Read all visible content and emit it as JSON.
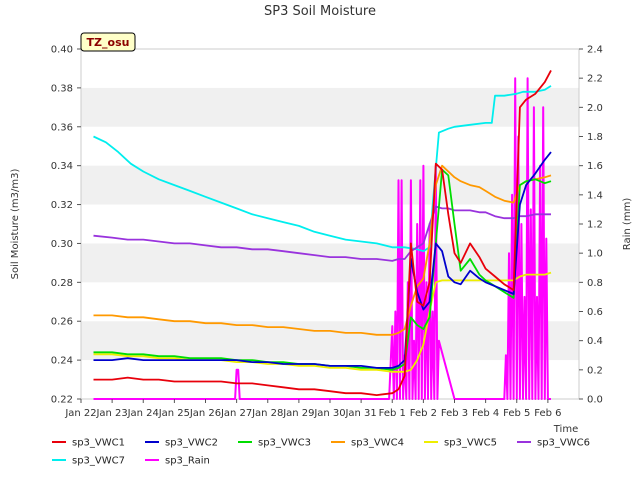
{
  "chart_data": {
    "type": "line",
    "title": "SP3 Soil Moisture",
    "xlabel": "Time",
    "ylabel": "Soil Moisture (m3/m3)",
    "y2label": "Rain (mm)",
    "badge": "TZ_osu",
    "x_ticks": [
      "Jan 22",
      "Jan 23",
      "Jan 24",
      "Jan 25",
      "Jan 26",
      "Jan 27",
      "Jan 28",
      "Jan 29",
      "Jan 30",
      "Jan 31",
      "Feb 1",
      "Feb 2",
      "Feb 3",
      "Feb 4",
      "Feb 5",
      "Feb 6"
    ],
    "xlim": [
      0,
      16
    ],
    "ylim": [
      0.22,
      0.4
    ],
    "y_ticks": [
      "0.22",
      "0.24",
      "0.26",
      "0.28",
      "0.30",
      "0.32",
      "0.34",
      "0.36",
      "0.38",
      "0.40"
    ],
    "y2lim": [
      0,
      2.4
    ],
    "y2_ticks": [
      "0.0",
      "0.2",
      "0.4",
      "0.6",
      "0.8",
      "1.0",
      "1.2",
      "1.4",
      "1.6",
      "1.8",
      "2.0",
      "2.2",
      "2.4"
    ],
    "grid": "horizontal bands",
    "legend": "bottom",
    "series": [
      {
        "name": "sp3_VWC1",
        "color": "#e8000b",
        "axis": "left",
        "x": [
          0.4,
          1,
          1.5,
          2,
          2.5,
          3,
          3.5,
          4,
          4.5,
          5,
          5.5,
          6,
          6.5,
          7,
          7.5,
          8,
          8.5,
          9,
          9.5,
          10,
          10.2,
          10.4,
          10.6,
          10.8,
          11,
          11.2,
          11.4,
          11.6,
          11.8,
          12,
          12.2,
          12.5,
          12.8,
          13,
          13.3,
          13.6,
          13.9,
          14.1,
          14.3,
          14.6,
          14.9,
          15.1
        ],
        "y": [
          0.23,
          0.23,
          0.231,
          0.23,
          0.23,
          0.229,
          0.229,
          0.229,
          0.229,
          0.228,
          0.228,
          0.227,
          0.226,
          0.225,
          0.225,
          0.224,
          0.223,
          0.223,
          0.222,
          0.223,
          0.225,
          0.232,
          0.3,
          0.27,
          0.268,
          0.28,
          0.341,
          0.338,
          0.315,
          0.295,
          0.29,
          0.3,
          0.293,
          0.287,
          0.283,
          0.279,
          0.276,
          0.37,
          0.374,
          0.377,
          0.383,
          0.389
        ]
      },
      {
        "name": "sp3_VWC2",
        "color": "#0000cc",
        "axis": "left",
        "x": [
          0.4,
          1,
          1.5,
          2,
          2.5,
          3,
          3.5,
          4,
          4.5,
          5,
          5.5,
          6,
          6.5,
          7,
          7.5,
          8,
          8.5,
          9,
          9.5,
          10,
          10.2,
          10.4,
          10.6,
          10.8,
          11,
          11.2,
          11.4,
          11.6,
          11.8,
          12,
          12.2,
          12.5,
          12.8,
          13,
          13.3,
          13.6,
          13.9,
          14.1,
          14.3,
          14.6,
          14.9,
          15.1
        ],
        "y": [
          0.24,
          0.24,
          0.241,
          0.24,
          0.24,
          0.24,
          0.24,
          0.24,
          0.24,
          0.24,
          0.239,
          0.239,
          0.238,
          0.238,
          0.238,
          0.237,
          0.237,
          0.237,
          0.236,
          0.236,
          0.237,
          0.24,
          0.292,
          0.275,
          0.266,
          0.27,
          0.3,
          0.296,
          0.283,
          0.28,
          0.279,
          0.286,
          0.282,
          0.28,
          0.278,
          0.276,
          0.274,
          0.32,
          0.33,
          0.336,
          0.343,
          0.347
        ]
      },
      {
        "name": "sp3_VWC3",
        "color": "#00dd00",
        "axis": "left",
        "x": [
          0.4,
          1,
          1.5,
          2,
          2.5,
          3,
          3.5,
          4,
          4.5,
          5,
          5.5,
          6,
          6.5,
          7,
          7.5,
          8,
          8.5,
          9,
          9.5,
          10,
          10.2,
          10.4,
          10.6,
          10.8,
          11,
          11.2,
          11.4,
          11.6,
          11.8,
          12,
          12.2,
          12.5,
          12.8,
          13,
          13.3,
          13.6,
          13.9,
          14.1,
          14.3,
          14.6,
          14.9,
          15.1
        ],
        "y": [
          0.244,
          0.244,
          0.243,
          0.243,
          0.242,
          0.242,
          0.241,
          0.241,
          0.241,
          0.24,
          0.24,
          0.239,
          0.239,
          0.238,
          0.238,
          0.237,
          0.237,
          0.236,
          0.236,
          0.235,
          0.236,
          0.238,
          0.262,
          0.258,
          0.256,
          0.262,
          0.3,
          0.338,
          0.335,
          0.31,
          0.286,
          0.292,
          0.284,
          0.281,
          0.278,
          0.275,
          0.272,
          0.33,
          0.332,
          0.333,
          0.331,
          0.332
        ]
      },
      {
        "name": "sp3_VWC4",
        "color": "#ff9900",
        "axis": "left",
        "x": [
          0.4,
          1,
          1.5,
          2,
          2.5,
          3,
          3.5,
          4,
          4.5,
          5,
          5.5,
          6,
          6.5,
          7,
          7.5,
          8,
          8.5,
          9,
          9.5,
          10,
          10.2,
          10.4,
          10.6,
          10.8,
          11,
          11.2,
          11.4,
          11.6,
          11.8,
          12,
          12.2,
          12.5,
          12.8,
          13,
          13.3,
          13.6,
          13.9,
          14.1,
          14.3,
          14.6,
          14.9,
          15.1
        ],
        "y": [
          0.263,
          0.263,
          0.262,
          0.262,
          0.261,
          0.26,
          0.26,
          0.259,
          0.259,
          0.258,
          0.258,
          0.257,
          0.257,
          0.256,
          0.255,
          0.255,
          0.254,
          0.254,
          0.253,
          0.253,
          0.254,
          0.256,
          0.268,
          0.278,
          0.282,
          0.3,
          0.33,
          0.34,
          0.337,
          0.334,
          0.332,
          0.33,
          0.329,
          0.327,
          0.324,
          0.322,
          0.321,
          0.33,
          0.332,
          0.333,
          0.334,
          0.335
        ]
      },
      {
        "name": "sp3_VWC5",
        "color": "#eeee00",
        "axis": "left",
        "x": [
          0.4,
          1,
          1.5,
          2,
          2.5,
          3,
          3.5,
          4,
          4.5,
          5,
          5.5,
          6,
          6.5,
          7,
          7.5,
          8,
          8.5,
          9,
          9.5,
          10,
          10.2,
          10.4,
          10.6,
          10.8,
          11,
          11.2,
          11.4,
          11.6,
          11.8,
          12,
          12.2,
          12.5,
          12.8,
          13,
          13.3,
          13.6,
          13.9,
          14.1,
          14.3,
          14.6,
          14.9,
          15.1
        ],
        "y": [
          0.243,
          0.243,
          0.242,
          0.242,
          0.241,
          0.241,
          0.24,
          0.24,
          0.24,
          0.239,
          0.239,
          0.238,
          0.238,
          0.237,
          0.237,
          0.236,
          0.236,
          0.235,
          0.235,
          0.234,
          0.234,
          0.234,
          0.235,
          0.24,
          0.248,
          0.265,
          0.28,
          0.281,
          0.281,
          0.281,
          0.281,
          0.281,
          0.281,
          0.281,
          0.281,
          0.281,
          0.281,
          0.283,
          0.284,
          0.284,
          0.284,
          0.285
        ]
      },
      {
        "name": "sp3_VWC6",
        "color": "#9933dd",
        "axis": "left",
        "x": [
          0.4,
          1,
          1.5,
          2,
          2.5,
          3,
          3.5,
          4,
          4.5,
          5,
          5.5,
          6,
          6.5,
          7,
          7.5,
          8,
          8.5,
          9,
          9.5,
          10,
          10.2,
          10.4,
          10.6,
          10.8,
          11,
          11.2,
          11.4,
          11.6,
          11.8,
          12,
          12.2,
          12.5,
          12.8,
          13,
          13.3,
          13.6,
          13.9,
          14.1,
          14.3,
          14.6,
          14.9,
          15.1
        ],
        "y": [
          0.304,
          0.303,
          0.302,
          0.302,
          0.301,
          0.3,
          0.3,
          0.299,
          0.298,
          0.298,
          0.297,
          0.297,
          0.296,
          0.295,
          0.294,
          0.293,
          0.293,
          0.292,
          0.292,
          0.291,
          0.292,
          0.292,
          0.296,
          0.298,
          0.3,
          0.31,
          0.319,
          0.318,
          0.318,
          0.317,
          0.317,
          0.317,
          0.316,
          0.316,
          0.314,
          0.313,
          0.313,
          0.314,
          0.314,
          0.315,
          0.315,
          0.315
        ]
      },
      {
        "name": "sp3_VWC7",
        "color": "#00eeee",
        "axis": "left",
        "x": [
          0.4,
          0.8,
          1.2,
          1.6,
          2,
          2.5,
          3,
          3.5,
          4,
          4.5,
          5,
          5.5,
          6,
          6.5,
          7,
          7.5,
          8,
          8.5,
          9,
          9.5,
          10,
          10.4,
          10.8,
          11,
          11.2,
          11.3,
          11.5,
          11.8,
          12,
          12.5,
          13,
          13.2,
          13.3,
          13.6,
          14,
          14.2,
          14.4,
          14.6,
          14.9,
          15.1
        ],
        "y": [
          0.355,
          0.352,
          0.347,
          0.341,
          0.337,
          0.333,
          0.33,
          0.327,
          0.324,
          0.321,
          0.318,
          0.315,
          0.313,
          0.311,
          0.309,
          0.306,
          0.304,
          0.302,
          0.301,
          0.3,
          0.298,
          0.298,
          0.297,
          0.296,
          0.298,
          0.32,
          0.357,
          0.359,
          0.36,
          0.361,
          0.362,
          0.362,
          0.376,
          0.376,
          0.377,
          0.378,
          0.378,
          0.378,
          0.379,
          0.381
        ]
      },
      {
        "name": "sp3_Rain",
        "color": "#ff00ff",
        "axis": "right",
        "x": [
          0.4,
          4.95,
          5.0,
          5.05,
          5.1,
          9.9,
          10.0,
          10.05,
          10.1,
          10.15,
          10.2,
          10.25,
          10.3,
          10.35,
          10.4,
          10.45,
          10.5,
          10.55,
          10.6,
          10.65,
          10.7,
          10.75,
          10.8,
          10.85,
          10.9,
          10.95,
          11.0,
          11.05,
          11.1,
          11.15,
          11.2,
          11.25,
          11.3,
          11.35,
          11.4,
          11.45,
          11.5,
          12.0,
          13.6,
          13.65,
          13.7,
          13.75,
          13.8,
          13.85,
          13.9,
          13.95,
          14.0,
          14.05,
          14.1,
          14.15,
          14.2,
          14.25,
          14.3,
          14.35,
          14.4,
          14.45,
          14.5,
          14.55,
          14.6,
          14.65,
          14.7,
          14.75,
          14.8,
          14.85,
          14.9,
          14.95,
          15.0,
          15.1
        ],
        "y": [
          0,
          0,
          0.2,
          0.2,
          0,
          0,
          0.5,
          0,
          0.6,
          0,
          1.5,
          0,
          1.5,
          0,
          0.3,
          0,
          0.8,
          0,
          1.5,
          0,
          0.4,
          0,
          1.2,
          0,
          1.5,
          0,
          1.6,
          0,
          0.8,
          0,
          1.2,
          0,
          0.6,
          0,
          1.6,
          0,
          0.4,
          0,
          0,
          0.3,
          0,
          1.0,
          0,
          1.4,
          0,
          2.2,
          0,
          1.8,
          0,
          1.2,
          0,
          0.7,
          0,
          2.2,
          0,
          1.3,
          0,
          2.0,
          0,
          0.7,
          0,
          1.6,
          0,
          2.0,
          0,
          1.1,
          0,
          0
        ]
      }
    ]
  }
}
